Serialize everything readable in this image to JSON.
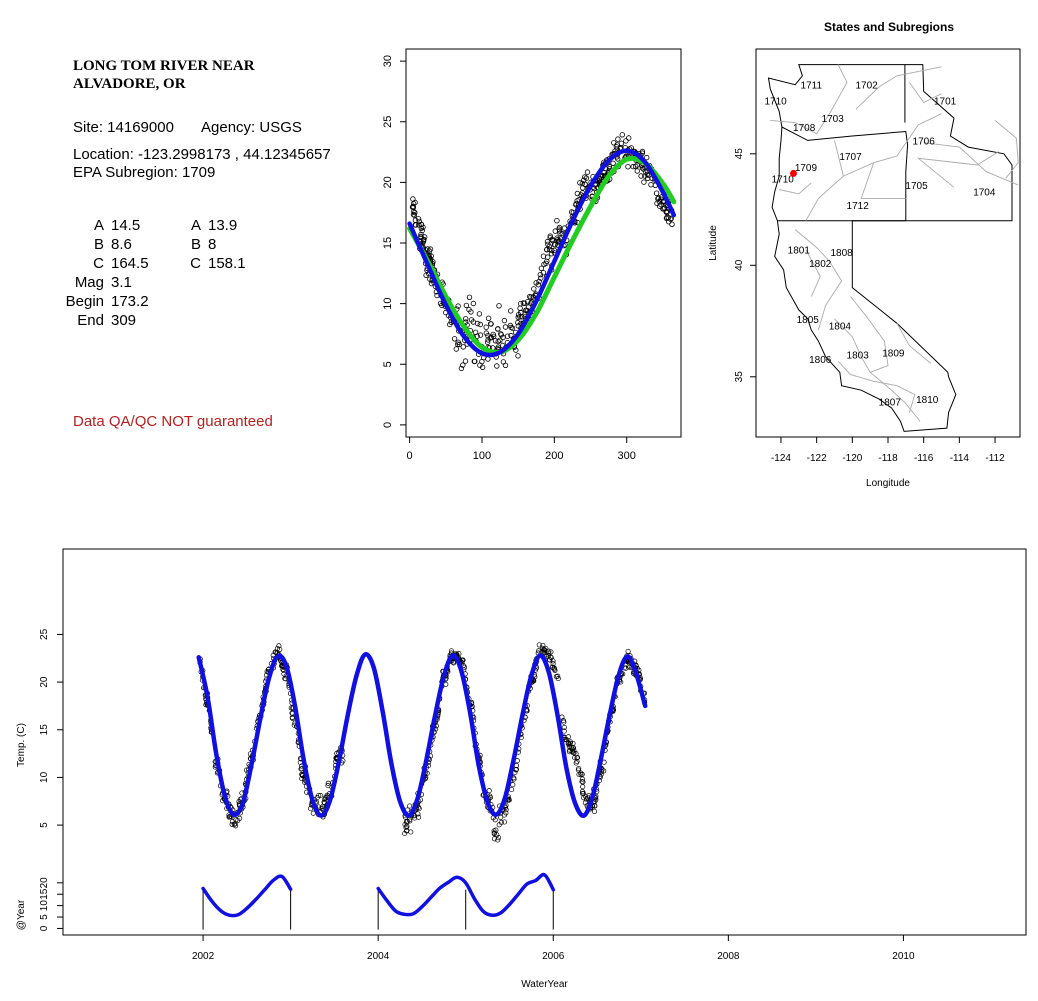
{
  "site": {
    "name_line1": "LONG TOM RIVER NEAR",
    "name_line2": "ALVADORE, OR",
    "site_text": "Site: 14169000",
    "agency_text": "Agency: USGS",
    "location_text": "Location: -123.2998173 , 44.12345657",
    "subregion_text": "EPA Subregion: 1709"
  },
  "params": {
    "rows": [
      {
        "name": "A",
        "v1": "14.5",
        "name2": "A",
        "v2": "13.9"
      },
      {
        "name": "B",
        "v1": "8.6",
        "name2": "B",
        "v2": "8"
      },
      {
        "name": "C",
        "v1": "164.5",
        "name2": "C",
        "v2": "158.1"
      },
      {
        "name": "Mag",
        "v1": "3.1",
        "name2": "",
        "v2": ""
      },
      {
        "name": "Begin",
        "v1": "173.2",
        "name2": "",
        "v2": ""
      },
      {
        "name": "End",
        "v1": "309",
        "name2": "",
        "v2": ""
      }
    ]
  },
  "disclaimer": "Data QA/QC NOT guaranteed",
  "colors": {
    "fit_blue": "#1010e0",
    "fit_green": "#22cc22",
    "site_red": "#ff0000",
    "disclaimer": "#b22222"
  },
  "chart_data": [
    {
      "type": "scatter",
      "title": "",
      "xlabel": "",
      "ylabel": "",
      "xlim": [
        -5,
        375
      ],
      "ylim": [
        -1,
        31
      ],
      "x_ticks": [
        0,
        100,
        200,
        300
      ],
      "y_ticks": [
        0,
        5,
        10,
        15,
        20,
        25,
        30
      ],
      "series": [
        {
          "kind": "points",
          "style": "open-circles",
          "x": [
            5,
            15,
            25,
            35,
            45,
            55,
            65,
            75,
            85,
            95,
            105,
            115,
            125,
            135,
            145,
            155,
            165,
            175,
            185,
            195,
            205,
            215,
            225,
            235,
            245,
            255,
            265,
            275,
            285,
            295,
            305,
            315,
            325,
            335,
            345,
            355,
            362
          ],
          "y": [
            17.5,
            15.8,
            13.5,
            12.2,
            10.5,
            9.4,
            7.9,
            7.3,
            8.8,
            6.2,
            6.5,
            7.8,
            6.4,
            7.2,
            7.8,
            8.9,
            9.8,
            10.8,
            13.2,
            14.4,
            15.8,
            15.1,
            17.3,
            18.4,
            19.6,
            19.4,
            20.3,
            21.1,
            22.4,
            22.6,
            22.8,
            21.6,
            21.2,
            20.4,
            18.6,
            17.8,
            17.2
          ]
        },
        {
          "kind": "line",
          "color": "#22cc22",
          "x": [
            0,
            25,
            50,
            75,
            100,
            125,
            150,
            175,
            200,
            225,
            250,
            275,
            300,
            325,
            350,
            365
          ],
          "y": [
            16.2,
            13.5,
            10.6,
            8.1,
            6.4,
            6.0,
            7.0,
            9.2,
            12.2,
            15.2,
            18.0,
            20.5,
            21.9,
            21.6,
            19.9,
            18.4
          ]
        },
        {
          "kind": "line",
          "color": "#1010e0",
          "x": [
            0,
            25,
            50,
            75,
            100,
            125,
            150,
            175,
            200,
            225,
            250,
            275,
            300,
            325,
            350,
            365
          ],
          "y": [
            16.6,
            13.2,
            9.9,
            7.3,
            5.9,
            6.0,
            7.5,
            10.2,
            13.5,
            16.8,
            19.7,
            21.8,
            22.6,
            21.7,
            19.2,
            17.3
          ]
        }
      ]
    },
    {
      "type": "map",
      "title": "States and Subregions",
      "xlabel": "Longitude",
      "ylabel": "Latitude",
      "xlim": [
        -125.4,
        -110.6
      ],
      "ylim": [
        32.3,
        49.7
      ],
      "x_ticks": [
        -124,
        -122,
        -120,
        -118,
        -116,
        -114,
        -112
      ],
      "y_ticks": [
        35,
        40,
        45
      ],
      "region_labels": [
        {
          "label": "1701",
          "lon": -114.8,
          "lat": 47.4
        },
        {
          "label": "1702",
          "lon": -119.2,
          "lat": 48.1
        },
        {
          "label": "1703",
          "lon": -121.1,
          "lat": 46.6
        },
        {
          "label": "1704",
          "lon": -112.6,
          "lat": 43.3
        },
        {
          "label": "1705",
          "lon": -116.4,
          "lat": 43.6
        },
        {
          "label": "1706",
          "lon": -116.0,
          "lat": 45.6
        },
        {
          "label": "1707",
          "lon": -120.1,
          "lat": 44.9
        },
        {
          "label": "1708",
          "lon": -122.7,
          "lat": 46.2
        },
        {
          "label": "1709",
          "lon": -122.6,
          "lat": 44.4
        },
        {
          "label": "1710",
          "lon": -123.9,
          "lat": 43.9
        },
        {
          "label": "1711",
          "lon": -122.3,
          "lat": 48.1
        },
        {
          "label": "1712",
          "lon": -119.7,
          "lat": 42.7
        },
        {
          "label": "1801",
          "lon": -123.0,
          "lat": 40.7
        },
        {
          "label": "1802",
          "lon": -121.8,
          "lat": 40.1
        },
        {
          "label": "1803",
          "lon": -119.7,
          "lat": 36.0
        },
        {
          "label": "1804",
          "lon": -120.7,
          "lat": 37.3
        },
        {
          "label": "1805",
          "lon": -122.5,
          "lat": 37.6
        },
        {
          "label": "1806",
          "lon": -121.8,
          "lat": 35.8
        },
        {
          "label": "1807",
          "lon": -117.9,
          "lat": 33.9
        },
        {
          "label": "1808",
          "lon": -120.6,
          "lat": 40.6
        },
        {
          "label": "1809",
          "lon": -117.7,
          "lat": 36.1
        },
        {
          "label": "1810",
          "lon": -115.8,
          "lat": 34.0
        },
        {
          "label": "1710",
          "lon": -124.3,
          "lat": 47.4
        }
      ],
      "site_point": {
        "lon": -123.3,
        "lat": 44.12
      }
    },
    {
      "type": "scatter",
      "title": "",
      "xlabel": "WaterYear",
      "ylabel": "Temp. (C)",
      "xlim": [
        2000.4,
        2011.4
      ],
      "x_ticks": [
        2002,
        2004,
        2006,
        2008,
        2010
      ],
      "temp_ylim": [
        0.5,
        30.5
      ],
      "temp_y_ticks": [
        5,
        10,
        15,
        20,
        25
      ],
      "obs": {
        "x": [
          2001.95,
          2002.05,
          2002.15,
          2002.25,
          2002.35,
          2002.45,
          2002.55,
          2002.65,
          2002.75,
          2002.85,
          2002.95,
          2003.05,
          2003.15,
          2003.25,
          2003.35,
          2003.45,
          2003.55,
          2004.35,
          2004.45,
          2004.55,
          2004.65,
          2004.75,
          2004.85,
          2004.95,
          2005.05,
          2005.15,
          2005.25,
          2005.35,
          2005.45,
          2005.55,
          2005.65,
          2005.75,
          2005.85,
          2005.95,
          2006.05,
          2006.15,
          2006.45,
          2006.55,
          2006.65,
          2006.75,
          2006.85,
          2006.95,
          2007.05
        ],
        "y": [
          22.5,
          18.0,
          11.5,
          7.8,
          5.5,
          7.2,
          12.0,
          16.5,
          21.0,
          23.0,
          21.0,
          16.0,
          10.0,
          7.6,
          6.8,
          8.5,
          12.5,
          5.4,
          7.0,
          10.5,
          15.5,
          20.2,
          22.9,
          22.3,
          18.0,
          11.8,
          7.5,
          4.8,
          6.5,
          10.2,
          15.3,
          20.0,
          23.4,
          23.0,
          20.2,
          13.8,
          7.3,
          10.8,
          15.9,
          20.5,
          22.5,
          21.3,
          18.2
        ]
      },
      "fit": {
        "color": "#1010e0",
        "x": [
          2001.95,
          2002.05,
          2002.15,
          2002.25,
          2002.35,
          2002.45,
          2002.55,
          2002.65,
          2002.75,
          2002.85,
          2002.95,
          2003.05,
          2003.15,
          2003.25,
          2003.35,
          2003.45,
          2003.55,
          2003.65,
          2003.75,
          2003.85,
          2003.95,
          2004.05,
          2004.15,
          2004.25,
          2004.35,
          2004.45,
          2004.55,
          2004.65,
          2004.75,
          2004.85,
          2004.95,
          2005.05,
          2005.15,
          2005.25,
          2005.35,
          2005.45,
          2005.55,
          2005.65,
          2005.75,
          2005.85,
          2005.95,
          2006.05,
          2006.15,
          2006.25,
          2006.35,
          2006.45,
          2006.55,
          2006.65,
          2006.75,
          2006.85,
          2006.95,
          2007.05
        ],
        "y": [
          22.6,
          18.5,
          12.5,
          8.0,
          6.1,
          7.2,
          11.2,
          16.0,
          20.3,
          22.7,
          21.7,
          17.5,
          11.8,
          7.6,
          6.0,
          7.6,
          11.6,
          16.4,
          20.6,
          22.9,
          21.5,
          17.0,
          11.5,
          7.5,
          6.0,
          7.8,
          11.8,
          16.5,
          20.6,
          22.8,
          21.2,
          16.8,
          11.2,
          7.4,
          6.1,
          7.9,
          12.0,
          16.6,
          20.7,
          22.8,
          21.0,
          16.5,
          11.0,
          7.3,
          6.0,
          8.0,
          12.2,
          16.8,
          20.8,
          22.7,
          20.8,
          17.5
        ]
      },
      "year_axis_label": "@Year",
      "year_ylim": [
        -2,
        30
      ],
      "year_y_ticks": [
        0,
        5,
        10,
        15,
        20
      ],
      "year_curves": [
        {
          "x": [
            2002.0,
            2002.1,
            2002.2,
            2002.3,
            2002.4,
            2002.5,
            2002.6,
            2002.7,
            2002.8,
            2002.9,
            2003.0
          ],
          "y": [
            17.5,
            12.0,
            7.8,
            5.8,
            6.0,
            8.8,
            12.6,
            16.8,
            21.0,
            22.8,
            17.2
          ]
        },
        {
          "x": [
            2004.0,
            2004.1,
            2004.2,
            2004.3,
            2004.4,
            2004.5,
            2004.6,
            2004.7,
            2004.8,
            2004.9,
            2005.0,
            2005.1,
            2005.2,
            2005.3,
            2005.4,
            2005.5,
            2005.6,
            2005.7,
            2005.8,
            2005.9,
            2006.0
          ],
          "y": [
            17.5,
            12.2,
            7.6,
            6.2,
            6.4,
            9.5,
            13.5,
            17.5,
            20.2,
            22.4,
            20.0,
            13.0,
            7.5,
            5.8,
            6.8,
            10.5,
            15.0,
            19.5,
            21.0,
            23.5,
            17.0
          ]
        }
      ],
      "year_breaks": [
        2002,
        2003,
        2004,
        2005,
        2006
      ]
    }
  ]
}
